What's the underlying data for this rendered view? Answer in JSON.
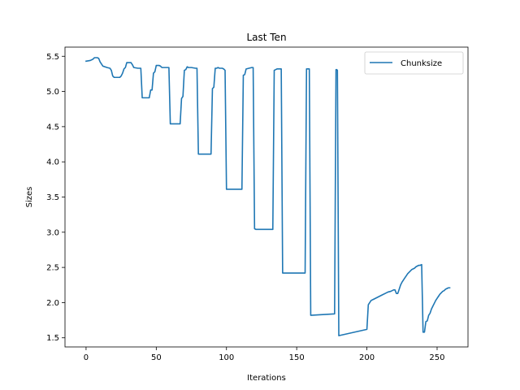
{
  "chart_data": {
    "type": "line",
    "title": "Last Ten",
    "xlabel": "Iterations",
    "ylabel": "Sizes",
    "xlim": [
      -15,
      272
    ],
    "ylim": [
      1.37,
      5.63
    ],
    "xticks": [
      0,
      50,
      100,
      150,
      200,
      250
    ],
    "yticks": [
      1.5,
      2.0,
      2.5,
      3.0,
      3.5,
      4.0,
      4.5,
      5.0,
      5.5
    ],
    "xtick_labels": [
      "0",
      "50",
      "100",
      "150",
      "200",
      "250"
    ],
    "ytick_labels": [
      "1.5",
      "2.0",
      "2.5",
      "3.0",
      "3.5",
      "4.0",
      "4.5",
      "5.0",
      "5.5"
    ],
    "grid": false,
    "legend_position": "top-right",
    "line_color": "#1f77b4",
    "series": [
      {
        "name": "Chunksize",
        "x": [
          0,
          3,
          5,
          6,
          8,
          9,
          10,
          11,
          12,
          15,
          17,
          18,
          19,
          20,
          21,
          23,
          24,
          25,
          26,
          27,
          28,
          29,
          30,
          31,
          32,
          33,
          34,
          37,
          38,
          39,
          40,
          41,
          42,
          43,
          44,
          45,
          46,
          47,
          48,
          49,
          50,
          51,
          52,
          53,
          54,
          55,
          56,
          58,
          59,
          60,
          61,
          62,
          63,
          67,
          68,
          69,
          70,
          71,
          72,
          73,
          75,
          78,
          79,
          80,
          88,
          89,
          90,
          91,
          92,
          93,
          94,
          95,
          96,
          97,
          98,
          99,
          100,
          101,
          110,
          111,
          112,
          113,
          114,
          116,
          118,
          119,
          120,
          121,
          122,
          133,
          134,
          135,
          136,
          137,
          138,
          139,
          140,
          141,
          155,
          156,
          157,
          158,
          159,
          160,
          177,
          178,
          178.6,
          179,
          180,
          200,
          201,
          202,
          203,
          205,
          207,
          209,
          211,
          213,
          215,
          217,
          219,
          220,
          221,
          222,
          223,
          224,
          225,
          226,
          227,
          228,
          229,
          230,
          231,
          232,
          233,
          234,
          235,
          236,
          237,
          238,
          239,
          240,
          241,
          242,
          243,
          244,
          245,
          246,
          247,
          248,
          249,
          250,
          251,
          252,
          253,
          254,
          255,
          256,
          257,
          258,
          259
        ],
        "y": [
          5.43,
          5.44,
          5.46,
          5.48,
          5.48,
          5.47,
          5.42,
          5.39,
          5.36,
          5.34,
          5.33,
          5.3,
          5.22,
          5.2,
          5.2,
          5.2,
          5.2,
          5.22,
          5.26,
          5.32,
          5.34,
          5.41,
          5.41,
          5.41,
          5.41,
          5.38,
          5.34,
          5.33,
          5.33,
          5.33,
          4.91,
          4.91,
          4.91,
          4.91,
          4.91,
          4.91,
          5.02,
          5.02,
          5.26,
          5.28,
          5.37,
          5.37,
          5.37,
          5.36,
          5.34,
          5.34,
          5.34,
          5.34,
          5.34,
          4.54,
          4.54,
          4.54,
          4.54,
          4.54,
          4.9,
          4.93,
          5.3,
          5.31,
          5.35,
          5.34,
          5.34,
          5.33,
          5.33,
          4.11,
          4.11,
          4.11,
          5.04,
          5.06,
          5.33,
          5.33,
          5.34,
          5.33,
          5.33,
          5.33,
          5.32,
          5.3,
          3.61,
          3.61,
          3.61,
          3.61,
          5.23,
          5.24,
          5.32,
          5.33,
          5.34,
          5.34,
          3.05,
          3.04,
          3.04,
          3.04,
          5.3,
          5.31,
          5.32,
          5.32,
          5.32,
          5.32,
          2.42,
          2.42,
          2.42,
          2.42,
          5.32,
          5.32,
          5.32,
          1.82,
          1.84,
          5.31,
          5.31,
          5.3,
          1.53,
          1.62,
          1.97,
          2.0,
          2.03,
          2.05,
          2.07,
          2.09,
          2.11,
          2.13,
          2.15,
          2.16,
          2.18,
          2.18,
          2.13,
          2.13,
          2.19,
          2.25,
          2.29,
          2.32,
          2.35,
          2.38,
          2.41,
          2.43,
          2.45,
          2.47,
          2.48,
          2.49,
          2.51,
          2.52,
          2.53,
          2.53,
          2.54,
          1.58,
          1.58,
          1.73,
          1.74,
          1.82,
          1.85,
          1.91,
          1.95,
          1.99,
          2.03,
          2.06,
          2.09,
          2.12,
          2.14,
          2.16,
          2.17,
          2.19,
          2.2,
          2.21,
          2.21
        ]
      }
    ]
  }
}
